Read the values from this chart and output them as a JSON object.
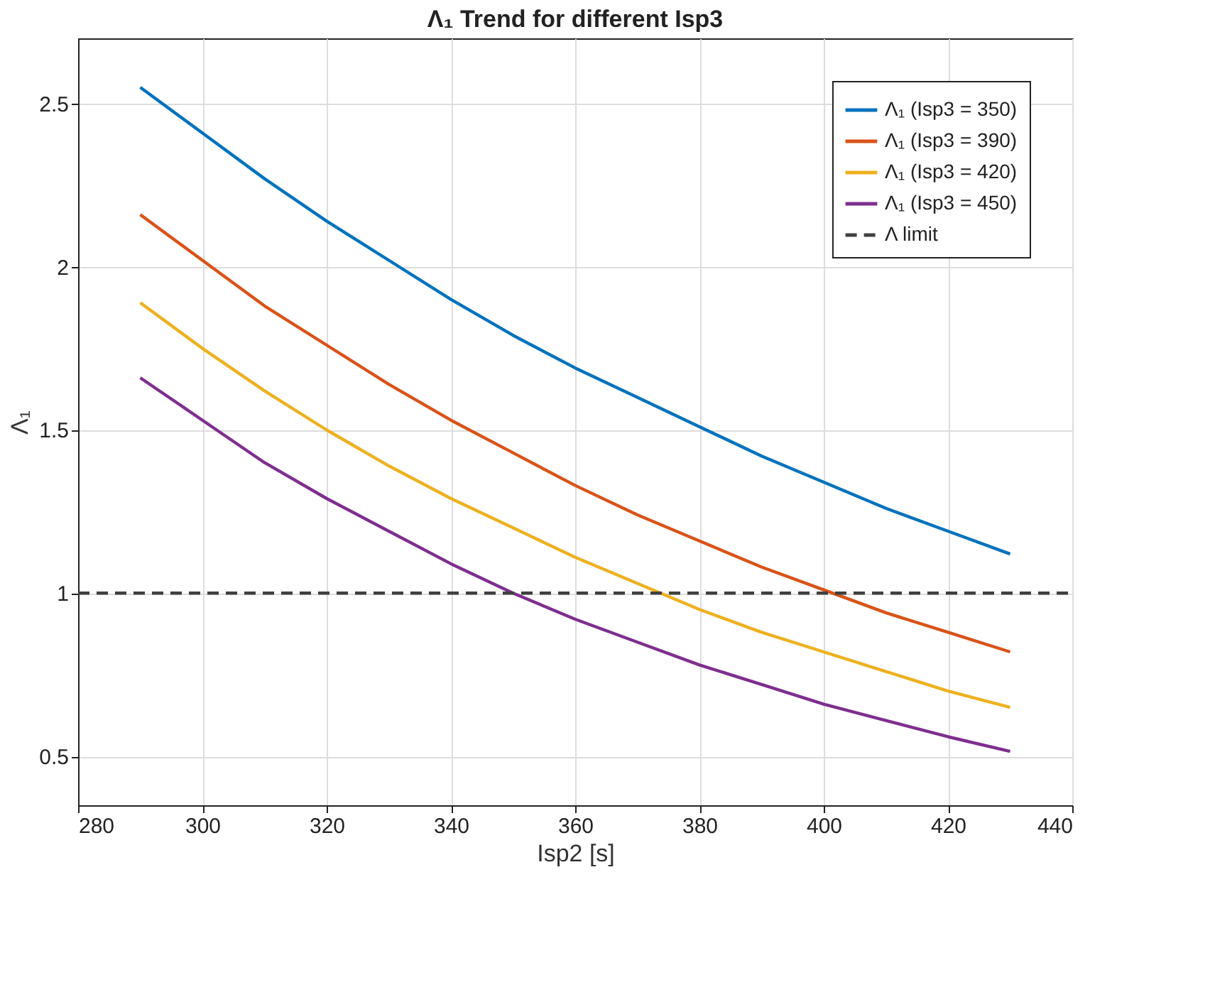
{
  "chart_data": {
    "type": "line",
    "title": "Λ₁ Trend for different Isp3",
    "xlabel": "Isp2 [s]",
    "ylabel": "Λ₁",
    "x": [
      290,
      300,
      310,
      320,
      330,
      340,
      350,
      360,
      370,
      380,
      390,
      400,
      410,
      420,
      430
    ],
    "series": [
      {
        "name": "Λ₁ (Isp3 = 350)",
        "color": "#0072bd",
        "values": [
          2.55,
          2.41,
          2.27,
          2.14,
          2.02,
          1.9,
          1.79,
          1.69,
          1.6,
          1.51,
          1.42,
          1.34,
          1.26,
          1.19,
          1.12
        ]
      },
      {
        "name": "Λ₁ (Isp3 = 390)",
        "color": "#d95319",
        "values": [
          2.16,
          2.02,
          1.88,
          1.76,
          1.64,
          1.53,
          1.43,
          1.33,
          1.24,
          1.16,
          1.08,
          1.01,
          0.94,
          0.88,
          0.82
        ]
      },
      {
        "name": "Λ₁ (Isp3 = 420)",
        "color": "#edb120",
        "values": [
          1.89,
          1.75,
          1.62,
          1.5,
          1.39,
          1.29,
          1.2,
          1.11,
          1.03,
          0.95,
          0.88,
          0.82,
          0.76,
          0.7,
          0.65
        ]
      },
      {
        "name": "Λ₁ (Isp3 = 450)",
        "color": "#7e2f8e",
        "values": [
          1.66,
          1.53,
          1.4,
          1.29,
          1.19,
          1.09,
          1.0,
          0.92,
          0.85,
          0.78,
          0.72,
          0.66,
          0.61,
          0.56,
          0.515
        ]
      },
      {
        "name": "Λ limit",
        "color": "#404040",
        "line_style": "dashed",
        "x": [
          280,
          440
        ],
        "values": [
          1,
          1
        ]
      }
    ],
    "xlim": [
      280,
      440
    ],
    "xticks": [
      280,
      300,
      320,
      340,
      360,
      380,
      400,
      420,
      440
    ],
    "ylim": [
      0.35,
      2.7
    ],
    "yticks": [
      0.5,
      1,
      1.5,
      2,
      2.5
    ],
    "grid": true,
    "legend": "top right",
    "line_style": "solid",
    "marker": "none"
  }
}
